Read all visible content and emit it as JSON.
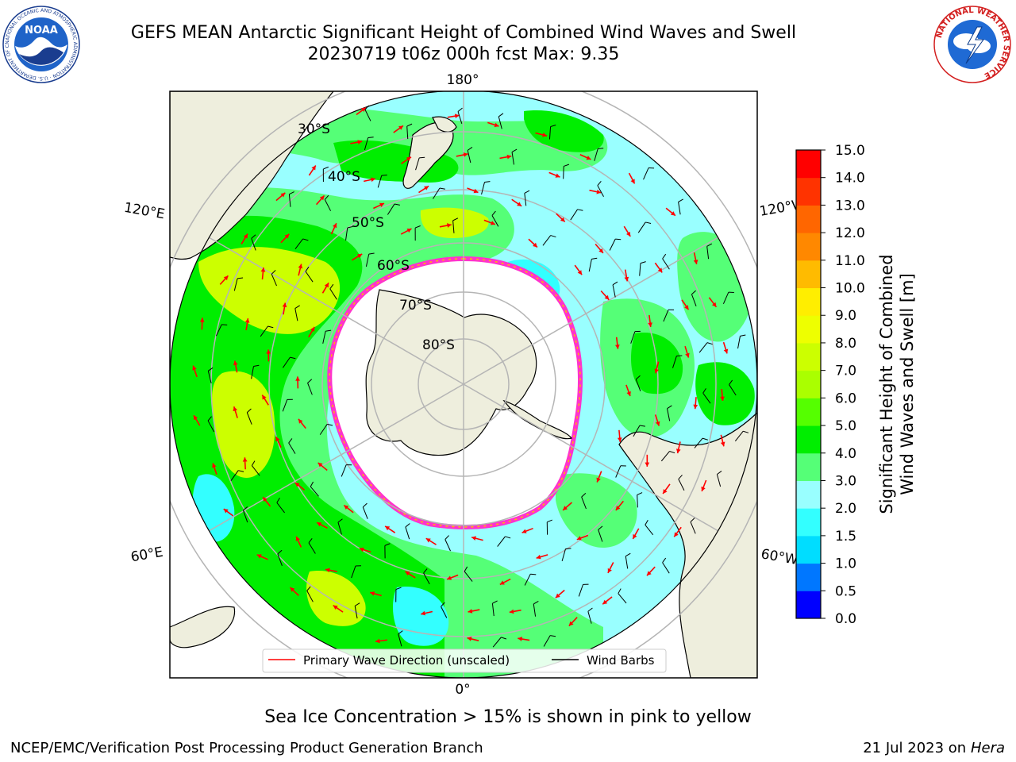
{
  "header": {
    "title_line1": "GEFS MEAN Antarctic Significant Height of Combined Wind Waves and Swell",
    "title_line2": "20230719 t06z 000h fcst   Max: 9.35"
  },
  "logos": {
    "noaa_text": "NOAA",
    "noaa_ring_text": "NATIONAL OCEANIC AND ATMOSPHERIC ADMINISTRATION · U.S. DEPARTMENT OF COMMERCE",
    "nws_ring_text": "NATIONAL WEATHER SERVICE"
  },
  "map": {
    "projection": "south-polar-stereographic",
    "longitude_labels": {
      "top": "180°",
      "bottom": "0°",
      "upper_left": "120°E",
      "lower_left": "60°E",
      "upper_right": "120°W",
      "lower_right": "60°W"
    },
    "latitude_labels": [
      "30°S",
      "40°S",
      "50°S",
      "60°S",
      "70°S",
      "80°S"
    ],
    "legend": {
      "wave_label": "Primary Wave Direction (unscaled)",
      "barb_label": "Wind Barbs",
      "wave_color": "#ff0000",
      "barb_color": "#000000"
    },
    "colors": {
      "land": "#eeeedd",
      "ice": "#ffffff",
      "ice_edge": "#ff33cc",
      "grid": "#b5b5b5"
    }
  },
  "colorbar": {
    "label_line1": "Significant Height of Combined",
    "label_line2": "Wind Waves and Swell [m]",
    "ticks": [
      "0.0",
      "0.5",
      "1.0",
      "1.5",
      "2.0",
      "3.0",
      "4.0",
      "5.0",
      "6.0",
      "7.0",
      "8.0",
      "9.0",
      "10.0",
      "11.0",
      "12.0",
      "13.0",
      "14.0",
      "15.0"
    ],
    "colors": [
      "#0000ff",
      "#0077ff",
      "#00ddff",
      "#33ffff",
      "#99ffff",
      "#55ff77",
      "#00ee00",
      "#55ff00",
      "#aaff00",
      "#ccff00",
      "#eeff00",
      "#ffee00",
      "#ffbb00",
      "#ff8800",
      "#ff6600",
      "#ff3300",
      "#ff0000"
    ]
  },
  "footer": {
    "note": "Sea Ice Concentration > 15% is shown in pink to yellow",
    "credit": "NCEP/EMC/Verification Post Processing Product Generation Branch",
    "date": "21 Jul 2023 on ",
    "machine": "Hera"
  }
}
